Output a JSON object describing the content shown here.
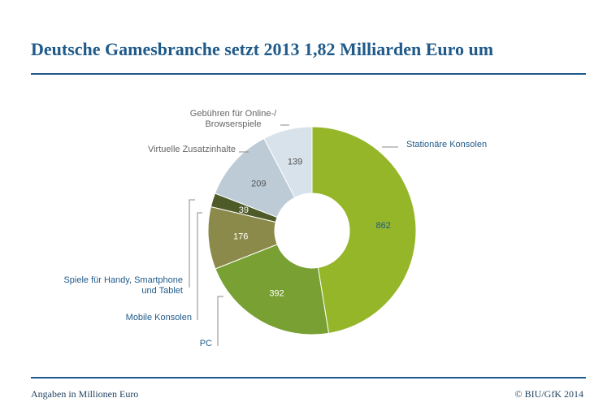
{
  "header": {
    "title": "Deutsche Gamesbranche setzt 2013 1,82 Milliarden Euro um"
  },
  "footer": {
    "note": "Angaben in Millionen Euro",
    "source": "© BIU/GfK 2014"
  },
  "chart_data": {
    "type": "pie",
    "donut": true,
    "legend": "none",
    "title": "Deutsche Gamesbranche setzt 2013 1,82 Milliarden Euro um",
    "unit": "Angaben in Millionen Euro",
    "slices": [
      {
        "label": "Stationäre Konsolen",
        "value": 862,
        "color": "#96b62a",
        "label_color": "#1f5a8a",
        "value_color": "#1f5a8a"
      },
      {
        "label": "PC",
        "value": 392,
        "color": "#78a032",
        "label_color": "#1f5a8a",
        "value_color": "#ffffff"
      },
      {
        "label": "Mobile Konsolen",
        "value": 176,
        "color": "#8c8a4a",
        "label_color": "#1f5a8a",
        "value_color": "#ffffff"
      },
      {
        "label": "Spiele für Handy, Smartphone und Tablet",
        "value": 39,
        "color": "#4e5a28",
        "label_color": "#1f5a8a",
        "value_color": "#ffffff"
      },
      {
        "label": "Virtuelle Zusatzinhalte",
        "value": 209,
        "color": "#bccbd6",
        "label_color": "#666666",
        "value_color": "#555555"
      },
      {
        "label": "Gebühren für Online-/ Browserspiele",
        "value": 139,
        "color": "#d8e2ea",
        "label_color": "#666666",
        "value_color": "#555555"
      }
    ]
  }
}
